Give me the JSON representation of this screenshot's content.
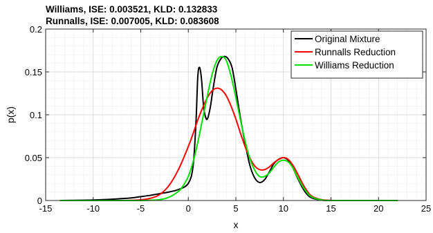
{
  "chart_data": {
    "type": "line",
    "title": [
      "Williams, ISE: 0.003521, KLD: 0.132833",
      "Runnalls, ISE: 0.007005, KLD: 0.083608"
    ],
    "xlabel": "x",
    "ylabel": "p(x)",
    "xlim": [
      -15,
      25
    ],
    "ylim": [
      0,
      0.2
    ],
    "xticks": [
      -15,
      -10,
      -5,
      0,
      5,
      10,
      15,
      20,
      25
    ],
    "yticks": [
      0,
      0.05,
      0.1,
      0.15,
      0.2
    ],
    "xtick_labels": [
      "-15",
      "-10",
      "-5",
      "0",
      "5",
      "10",
      "15",
      "20",
      "25"
    ],
    "ytick_labels": [
      "0",
      "0.05",
      "0.1",
      "0.15",
      "0.2"
    ],
    "grid": true,
    "minor_grid": true,
    "legend_position": "top-right",
    "series": [
      {
        "name": "Original Mixture",
        "color": "#000000",
        "x": [
          -13.5,
          -12,
          -10,
          -8,
          -6,
          -5,
          -4,
          -3,
          -2,
          -1,
          0,
          0.5,
          0.8,
          1.0,
          1.2,
          1.4,
          1.6,
          1.8,
          2.0,
          2.3,
          2.6,
          3.0,
          3.4,
          3.8,
          4.2,
          4.6,
          5.0,
          5.5,
          6.0,
          6.5,
          7.0,
          7.5,
          8.0,
          8.5,
          9.0,
          9.5,
          10.0,
          10.5,
          11.0,
          11.5,
          12.0,
          12.5,
          13.0,
          14.0,
          15.0,
          16.0,
          18.0,
          22.0
        ],
        "y": [
          0.0,
          0.0002,
          0.0006,
          0.0015,
          0.003,
          0.0045,
          0.006,
          0.008,
          0.01,
          0.013,
          0.02,
          0.04,
          0.09,
          0.145,
          0.155,
          0.14,
          0.11,
          0.098,
          0.095,
          0.108,
          0.13,
          0.155,
          0.165,
          0.168,
          0.165,
          0.155,
          0.13,
          0.095,
          0.065,
          0.04,
          0.026,
          0.021,
          0.024,
          0.033,
          0.043,
          0.048,
          0.05,
          0.047,
          0.038,
          0.026,
          0.015,
          0.007,
          0.003,
          0.0005,
          0.0001,
          0.0,
          0.0,
          0.0
        ]
      },
      {
        "name": "Runnalls Reduction",
        "color": "#ff0000",
        "x": [
          -13.5,
          -10,
          -8,
          -6,
          -5,
          -4,
          -3,
          -2,
          -1,
          0,
          0.5,
          1.0,
          1.5,
          2.0,
          2.5,
          3.0,
          3.5,
          4.0,
          4.5,
          5.0,
          5.5,
          6.0,
          6.5,
          7.0,
          7.5,
          8.0,
          8.5,
          9.0,
          9.5,
          10.0,
          10.5,
          11.0,
          11.5,
          12.0,
          12.5,
          13.0,
          14.0,
          15.0,
          16.0,
          18.0,
          22.0
        ],
        "y": [
          0.0,
          0.0,
          0.0,
          0.0002,
          0.0008,
          0.0025,
          0.007,
          0.018,
          0.037,
          0.063,
          0.078,
          0.094,
          0.108,
          0.12,
          0.128,
          0.131,
          0.129,
          0.122,
          0.11,
          0.095,
          0.078,
          0.062,
          0.049,
          0.04,
          0.036,
          0.036,
          0.039,
          0.044,
          0.048,
          0.05,
          0.048,
          0.041,
          0.031,
          0.02,
          0.011,
          0.005,
          0.001,
          0.0001,
          0.0,
          0.0,
          0.0
        ]
      },
      {
        "name": "Williams Reduction",
        "color": "#00e000",
        "x": [
          -13.5,
          -10,
          -8,
          -6,
          -5,
          -4,
          -3,
          -2,
          -1,
          -0.5,
          0,
          0.5,
          1.0,
          1.5,
          2.0,
          2.5,
          3.0,
          3.5,
          4.0,
          4.5,
          5.0,
          5.5,
          6.0,
          6.5,
          7.0,
          7.5,
          8.0,
          8.5,
          9.0,
          9.5,
          10.0,
          10.5,
          11.0,
          11.5,
          12.0,
          12.5,
          13.0,
          14.0,
          15.0,
          16.0,
          18.0,
          22.0
        ],
        "y": [
          0.0,
          0.0,
          0.0,
          0.0,
          0.0,
          0.0003,
          0.001,
          0.004,
          0.011,
          0.018,
          0.028,
          0.045,
          0.068,
          0.095,
          0.122,
          0.147,
          0.163,
          0.168,
          0.163,
          0.145,
          0.12,
          0.093,
          0.068,
          0.048,
          0.035,
          0.028,
          0.028,
          0.032,
          0.039,
          0.045,
          0.047,
          0.045,
          0.038,
          0.027,
          0.017,
          0.009,
          0.004,
          0.0006,
          0.0,
          0.0,
          0.0,
          0.0
        ]
      }
    ]
  }
}
